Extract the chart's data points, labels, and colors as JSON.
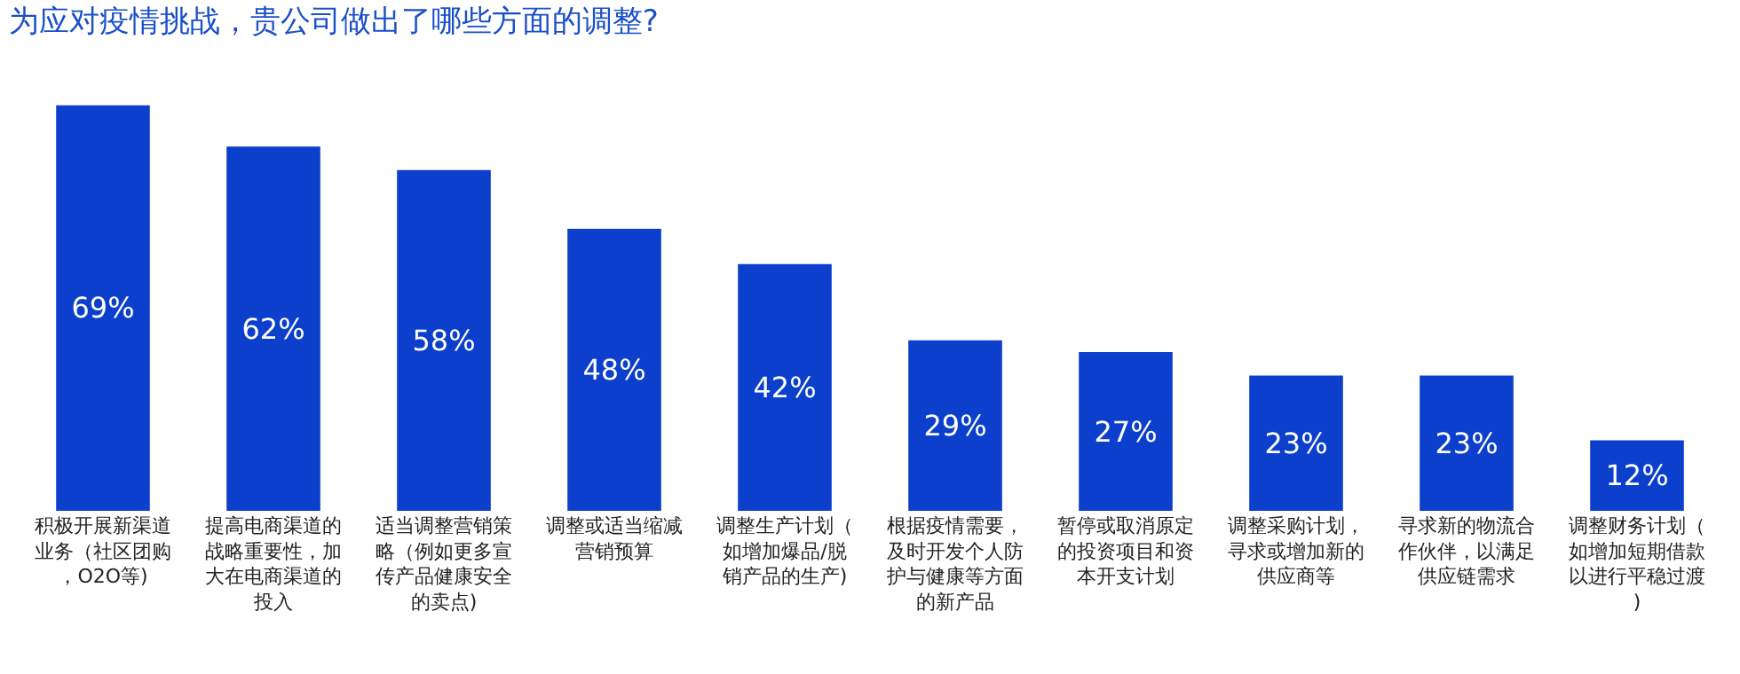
{
  "chart_data": {
    "type": "bar",
    "title": "为应对疫情挑战，贵公司做出了哪些方面的调整?",
    "categories": [
      "积极开展新渠道业务（社区团购，O2O等)",
      "提高电商渠道的战略重要性，加大在电商渠道的投入",
      "适当调整营销策略（例如更多宣传产品健康安全的卖点)",
      "调整或适当缩减营销预算",
      "调整生产计划（如增加爆品/脱销产品的生产)",
      "根据疫情需要，及时开发个人防护与健康等方面的新产品",
      "暂停或取消原定的投资项目和资本开支计划",
      "调整采购计划，寻求或增加新的供应商等",
      "寻求新的物流合作伙伴，以满足供应链需求",
      "调整财务计划（如增加短期借款以进行平稳过渡)"
    ],
    "values": [
      69,
      62,
      58,
      48,
      42,
      29,
      27,
      23,
      23,
      12
    ],
    "value_labels": [
      "69%",
      "62%",
      "58%",
      "48%",
      "42%",
      "29%",
      "27%",
      "23%",
      "23%",
      "12%"
    ],
    "color": "#0b3fcc",
    "grid": false,
    "legend": false
  }
}
